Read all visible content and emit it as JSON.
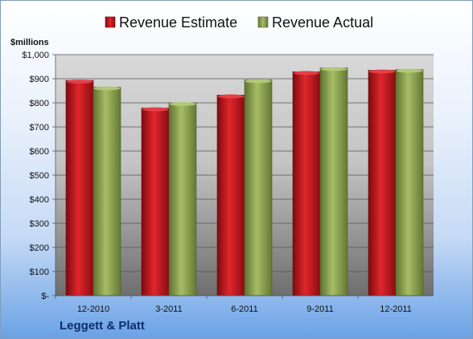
{
  "company": "Leggett & Platt",
  "colors": {
    "estimate": "#c0141b",
    "actual": "#8fa64f"
  },
  "chart_data": {
    "type": "bar",
    "categories": [
      "12-2010",
      "3-2011",
      "6-2011",
      "9-2011",
      "12-2011"
    ],
    "series": [
      {
        "name": "Revenue Estimate",
        "values": [
          893,
          778,
          832,
          929,
          935
        ]
      },
      {
        "name": "Revenue Actual",
        "values": [
          865,
          800,
          895,
          945,
          938
        ]
      }
    ],
    "ylabel": "$millions",
    "ylim": [
      0,
      1000
    ],
    "yticks": [
      0,
      100,
      200,
      300,
      400,
      500,
      600,
      700,
      800,
      900,
      1000
    ],
    "ytick_labels": [
      "$-",
      "$100",
      "$200",
      "$300",
      "$400",
      "$500",
      "$600",
      "$700",
      "$800",
      "$900",
      "$1,000"
    ],
    "legend_position": "top",
    "grid": true
  }
}
